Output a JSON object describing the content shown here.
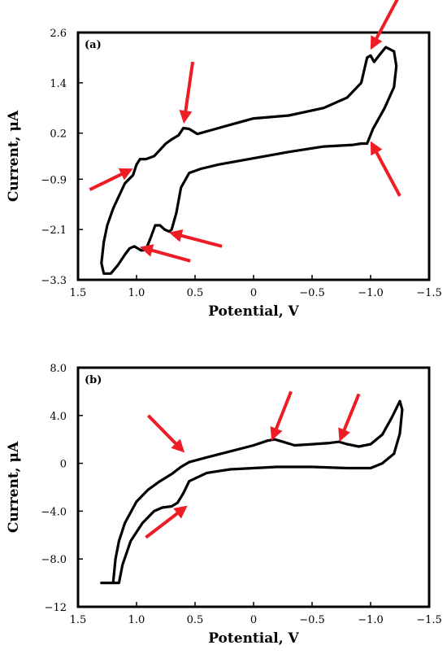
{
  "chart_data": [
    {
      "type": "line",
      "panel_label": "(a)",
      "xlabel": "Potential, V",
      "ylabel": "Current, μA",
      "xlim": [
        1.5,
        -1.5
      ],
      "ylim": [
        -3.3,
        2.6
      ],
      "xticks": [
        1.5,
        1.0,
        0.5,
        0,
        -0.5,
        -1.0,
        -1.5
      ],
      "xtick_labels": [
        "1.5",
        "1.0",
        "0.5",
        "0",
        "−0.5",
        "−1.0",
        "−1.5"
      ],
      "yticks": [
        2.6,
        1.4,
        0.2,
        -0.9,
        -2.1,
        -3.3
      ],
      "ytick_labels": [
        "2.6",
        "1.4",
        "0.2",
        "−0.9",
        "−2.1",
        "−3.3"
      ],
      "grid": false,
      "series": [
        {
          "values": [
            [
              1.28,
              -3.15
            ],
            [
              1.3,
              -2.9
            ],
            [
              1.28,
              -2.4
            ],
            [
              1.25,
              -2.0
            ],
            [
              1.2,
              -1.6
            ],
            [
              1.1,
              -1.0
            ],
            [
              1.03,
              -0.8
            ],
            [
              1.0,
              -0.55
            ],
            [
              0.97,
              -0.42
            ],
            [
              0.92,
              -0.42
            ],
            [
              0.85,
              -0.35
            ],
            [
              0.8,
              -0.2
            ],
            [
              0.75,
              -0.05
            ],
            [
              0.7,
              0.05
            ],
            [
              0.64,
              0.15
            ],
            [
              0.6,
              0.32
            ],
            [
              0.55,
              0.3
            ],
            [
              0.48,
              0.18
            ],
            [
              0.35,
              0.28
            ],
            [
              0.2,
              0.4
            ],
            [
              0.0,
              0.55
            ],
            [
              -0.3,
              0.62
            ],
            [
              -0.6,
              0.8
            ],
            [
              -0.8,
              1.05
            ],
            [
              -0.92,
              1.4
            ],
            [
              -0.97,
              2.0
            ],
            [
              -1.0,
              2.05
            ],
            [
              -1.03,
              1.9
            ],
            [
              -1.08,
              2.08
            ],
            [
              -1.13,
              2.25
            ],
            [
              -1.2,
              2.15
            ],
            [
              -1.22,
              1.8
            ],
            [
              -1.2,
              1.3
            ],
            [
              -1.12,
              0.8
            ],
            [
              -1.02,
              0.3
            ],
            [
              -0.97,
              -0.05
            ],
            [
              -0.92,
              -0.05
            ],
            [
              -0.85,
              -0.08
            ],
            [
              -0.6,
              -0.12
            ],
            [
              -0.3,
              -0.25
            ],
            [
              0.0,
              -0.4
            ],
            [
              0.3,
              -0.55
            ],
            [
              0.45,
              -0.65
            ],
            [
              0.55,
              -0.75
            ],
            [
              0.62,
              -1.1
            ],
            [
              0.66,
              -1.7
            ],
            [
              0.7,
              -2.1
            ],
            [
              0.72,
              -2.15
            ],
            [
              0.76,
              -2.1
            ],
            [
              0.8,
              -2.0
            ],
            [
              0.84,
              -2.0
            ],
            [
              0.88,
              -2.3
            ],
            [
              0.92,
              -2.58
            ],
            [
              0.96,
              -2.6
            ],
            [
              1.02,
              -2.5
            ],
            [
              1.06,
              -2.55
            ],
            [
              1.1,
              -2.7
            ],
            [
              1.16,
              -2.95
            ],
            [
              1.22,
              -3.15
            ],
            [
              1.28,
              -3.15
            ]
          ]
        }
      ],
      "annotations": [
        {
          "text": "",
          "arrow_tip": [
            1.07,
            -0.7
          ],
          "arrow_tail": [
            1.4,
            -1.15
          ]
        },
        {
          "text": "",
          "arrow_tip": [
            0.59,
            0.55
          ],
          "arrow_tail": [
            0.52,
            1.9
          ]
        },
        {
          "text": "",
          "arrow_tip": [
            -1.02,
            2.3
          ],
          "arrow_tail": [
            -1.23,
            3.4
          ]
        },
        {
          "text": "",
          "arrow_tip": [
            -1.02,
            -0.1
          ],
          "arrow_tail": [
            -1.25,
            -1.3
          ]
        },
        {
          "text": "",
          "arrow_tip": [
            0.68,
            -2.2
          ],
          "arrow_tail": [
            0.27,
            -2.5
          ]
        },
        {
          "text": "",
          "arrow_tip": [
            0.93,
            -2.55
          ],
          "arrow_tail": [
            0.54,
            -2.85
          ]
        }
      ],
      "colors": {
        "curve": "#000000",
        "arrow": "#ee1c25",
        "frame": "#000000"
      }
    },
    {
      "type": "line",
      "panel_label": "(b)",
      "xlabel": "Potential, V",
      "ylabel": "Current, μA",
      "xlim": [
        1.5,
        -1.5
      ],
      "ylim": [
        -12,
        8
      ],
      "xticks": [
        1.5,
        1.0,
        0.5,
        0,
        -0.5,
        -1.0,
        -1.5
      ],
      "xtick_labels": [
        "1.5",
        "1.0",
        "0.5",
        "0",
        "−0.5",
        "−1.0",
        "−1.5"
      ],
      "yticks": [
        8,
        4,
        0,
        -4,
        -8,
        -12
      ],
      "ytick_labels": [
        "8.0",
        "4.0",
        "0",
        "−4.0",
        "−8.0",
        "−12"
      ],
      "grid": false,
      "series": [
        {
          "values": [
            [
              1.3,
              -10.0
            ],
            [
              1.2,
              -10.0
            ],
            [
              1.18,
              -8.0
            ],
            [
              1.15,
              -6.5
            ],
            [
              1.1,
              -5.0
            ],
            [
              1.0,
              -3.2
            ],
            [
              0.9,
              -2.2
            ],
            [
              0.8,
              -1.5
            ],
            [
              0.7,
              -0.9
            ],
            [
              0.62,
              -0.3
            ],
            [
              0.55,
              0.1
            ],
            [
              0.4,
              0.5
            ],
            [
              0.2,
              1.0
            ],
            [
              0.0,
              1.5
            ],
            [
              -0.12,
              1.9
            ],
            [
              -0.18,
              2.0
            ],
            [
              -0.25,
              1.8
            ],
            [
              -0.35,
              1.5
            ],
            [
              -0.5,
              1.6
            ],
            [
              -0.65,
              1.7
            ],
            [
              -0.73,
              1.8
            ],
            [
              -0.8,
              1.6
            ],
            [
              -0.9,
              1.4
            ],
            [
              -1.0,
              1.6
            ],
            [
              -1.1,
              2.4
            ],
            [
              -1.18,
              3.8
            ],
            [
              -1.25,
              5.2
            ],
            [
              -1.27,
              4.5
            ],
            [
              -1.25,
              2.5
            ],
            [
              -1.2,
              0.8
            ],
            [
              -1.1,
              0.0
            ],
            [
              -1.0,
              -0.4
            ],
            [
              -0.8,
              -0.4
            ],
            [
              -0.5,
              -0.3
            ],
            [
              -0.2,
              -0.3
            ],
            [
              0.0,
              -0.4
            ],
            [
              0.2,
              -0.5
            ],
            [
              0.4,
              -0.8
            ],
            [
              0.55,
              -1.5
            ],
            [
              0.6,
              -2.5
            ],
            [
              0.65,
              -3.3
            ],
            [
              0.7,
              -3.6
            ],
            [
              0.78,
              -3.7
            ],
            [
              0.85,
              -4.0
            ],
            [
              0.95,
              -5.0
            ],
            [
              1.05,
              -6.5
            ],
            [
              1.12,
              -8.5
            ],
            [
              1.15,
              -10.0
            ],
            [
              1.2,
              -10.0
            ],
            [
              1.3,
              -10.0
            ]
          ]
        }
      ],
      "annotations": [
        {
          "text": "",
          "arrow_tip": [
            0.62,
            1.2
          ],
          "arrow_tail": [
            0.9,
            4.0
          ]
        },
        {
          "text": "",
          "arrow_tip": [
            -0.17,
            2.3
          ],
          "arrow_tail": [
            -0.32,
            6.0
          ]
        },
        {
          "text": "",
          "arrow_tip": [
            -0.75,
            2.2
          ],
          "arrow_tail": [
            -0.9,
            5.8
          ]
        },
        {
          "text": "",
          "arrow_tip": [
            0.6,
            -3.8
          ],
          "arrow_tail": [
            0.92,
            -6.2
          ]
        }
      ],
      "colors": {
        "curve": "#000000",
        "arrow": "#ee1c25",
        "frame": "#000000"
      }
    }
  ]
}
